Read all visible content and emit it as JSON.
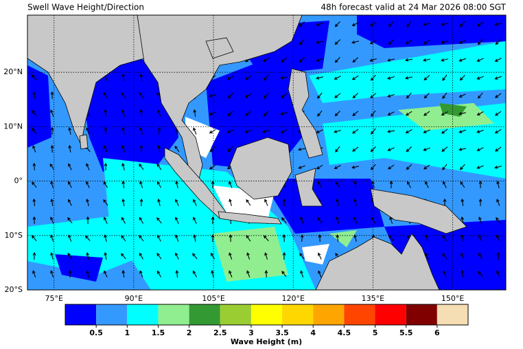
{
  "header": {
    "title": "Swell Wave Height/Direction",
    "valid": "48h forecast valid at 24 Mar 2026 08:00 SGT"
  },
  "map": {
    "xlim": [
      70,
      160
    ],
    "ylim": [
      -20,
      30.5
    ],
    "xticks": [
      {
        "value": 75,
        "label": "75°E"
      },
      {
        "value": 90,
        "label": "90°E"
      },
      {
        "value": 105,
        "label": "105°E"
      },
      {
        "value": 120,
        "label": "120°E"
      },
      {
        "value": 135,
        "label": "135°E"
      },
      {
        "value": 150,
        "label": "150°E"
      }
    ],
    "yticks": [
      {
        "value": 20,
        "label": "20°N"
      },
      {
        "value": 10,
        "label": "10°N"
      },
      {
        "value": 0,
        "label": "0°"
      },
      {
        "value": -10,
        "label": "10°S"
      },
      {
        "value": -20,
        "label": "20°S"
      }
    ]
  },
  "colorbar": {
    "label": "Wave Height (m)",
    "range": [
      0,
      6.5
    ],
    "ticks": [
      0.5,
      1,
      1.5,
      2,
      2.5,
      3,
      3.5,
      4,
      4.5,
      5,
      5.5,
      6
    ],
    "colors": [
      "#0000ff",
      "#3399ff",
      "#00ffff",
      "#90ee90",
      "#339933",
      "#9acd32",
      "#ffff00",
      "#ffd700",
      "#ffa500",
      "#ff4500",
      "#ff0000",
      "#800000",
      "#f5deb3"
    ]
  }
}
